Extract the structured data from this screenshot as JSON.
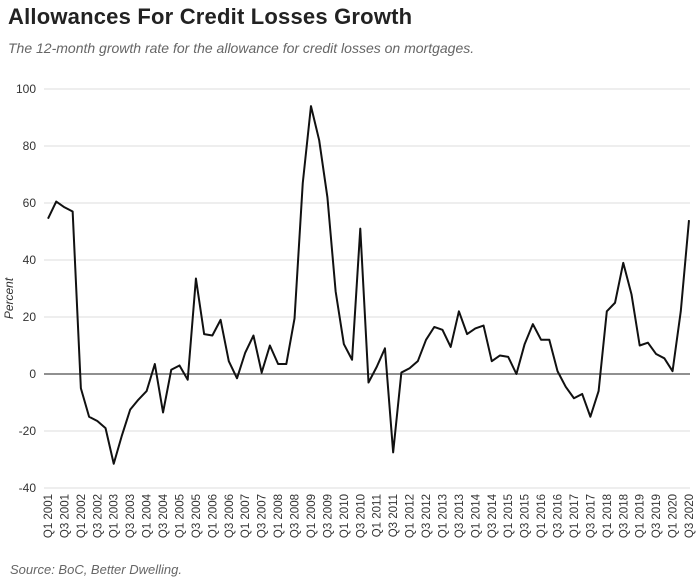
{
  "title": "Allowances For Credit Losses Growth",
  "subtitle": "The 12-month growth rate for the allowance for credit losses on mortgages.",
  "source": "Source: BoC, Better Dwelling.",
  "chart_data": {
    "type": "line",
    "title": "Allowances For Credit Losses Growth",
    "ylabel": "Percent",
    "xlabel": "",
    "ylim": [
      -45,
      100
    ],
    "yticks": [
      100,
      80,
      60,
      40,
      20,
      0,
      -20,
      -40
    ],
    "xtick_labels": [
      "Q1 2001",
      "Q3 2001",
      "Q1 2002",
      "Q3 2002",
      "Q1 2003",
      "Q3 2003",
      "Q1 2004",
      "Q3 2004",
      "Q1 2005",
      "Q3 2005",
      "Q1 2006",
      "Q3 2006",
      "Q1 2007",
      "Q3 2007",
      "Q1 2008",
      "Q3 2008",
      "Q1 2009",
      "Q3 2009",
      "Q1 2010",
      "Q3 2010",
      "Q1 2011",
      "Q3 2011",
      "Q1 2012",
      "Q3 2012",
      "Q1 2013",
      "Q3 2013",
      "Q1 2014",
      "Q3 2014",
      "Q1 2015",
      "Q3 2015",
      "Q1 2016",
      "Q3 2016",
      "Q1 2017",
      "Q3 2017",
      "Q1 2018",
      "Q3 2018",
      "Q1 2019",
      "Q3 2019",
      "Q1 2020",
      "Q3 2020"
    ],
    "grid": true,
    "series": [
      {
        "color": "#111111",
        "x": [
          "Q1 2001",
          "Q2 2001",
          "Q3 2001",
          "Q4 2001",
          "Q1 2002",
          "Q2 2002",
          "Q3 2002",
          "Q4 2002",
          "Q1 2003",
          "Q2 2003",
          "Q3 2003",
          "Q4 2003",
          "Q1 2004",
          "Q2 2004",
          "Q3 2004",
          "Q4 2004",
          "Q1 2005",
          "Q2 2005",
          "Q3 2005",
          "Q4 2005",
          "Q1 2006",
          "Q2 2006",
          "Q3 2006",
          "Q4 2006",
          "Q1 2007",
          "Q2 2007",
          "Q3 2007",
          "Q4 2007",
          "Q1 2008",
          "Q2 2008",
          "Q3 2008",
          "Q4 2008",
          "Q1 2009",
          "Q2 2009",
          "Q3 2009",
          "Q4 2009",
          "Q1 2010",
          "Q2 2010",
          "Q3 2010",
          "Q4 2010",
          "Q1 2011",
          "Q2 2011",
          "Q3 2011",
          "Q4 2011",
          "Q1 2012",
          "Q2 2012",
          "Q3 2012",
          "Q4 2012",
          "Q1 2013",
          "Q2 2013",
          "Q3 2013",
          "Q4 2013",
          "Q1 2014",
          "Q2 2014",
          "Q3 2014",
          "Q4 2014",
          "Q1 2015",
          "Q2 2015",
          "Q3 2015",
          "Q4 2015",
          "Q1 2016",
          "Q2 2016",
          "Q3 2016",
          "Q4 2016",
          "Q1 2017",
          "Q2 2017",
          "Q3 2017",
          "Q4 2017",
          "Q1 2018",
          "Q2 2018",
          "Q3 2018",
          "Q4 2018",
          "Q1 2019",
          "Q2 2019",
          "Q3 2019",
          "Q4 2019",
          "Q1 2020",
          "Q2 2020",
          "Q3 2020"
        ],
        "values": [
          54.5,
          60.5,
          58.5,
          57,
          -5,
          -15,
          -16.5,
          -19,
          -31.5,
          -21.5,
          -12.5,
          -9,
          -6,
          3.5,
          -13.5,
          1.5,
          3,
          -2,
          33.5,
          14,
          13.5,
          19,
          4.5,
          -1.5,
          7.5,
          13.5,
          0.5,
          10,
          3.5,
          3.5,
          19.5,
          67,
          94,
          82,
          62,
          29,
          10.5,
          5,
          51,
          -3,
          2.5,
          9,
          -27.5,
          0.5,
          2,
          4.5,
          12,
          16.5,
          15.5,
          9.5,
          22,
          14,
          16,
          17,
          4.5,
          6.5,
          6,
          0,
          10.5,
          17.5,
          12,
          12,
          1,
          -4.5,
          -8.5,
          -7,
          -15,
          -6,
          22,
          25,
          39,
          28,
          10,
          11,
          7,
          5.5,
          1,
          22,
          54
        ]
      }
    ]
  }
}
